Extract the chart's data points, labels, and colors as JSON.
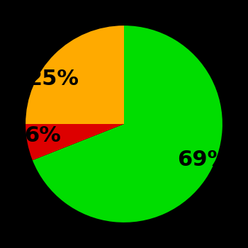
{
  "slices": [
    69,
    6,
    25
  ],
  "labels": [
    "69%",
    "6%",
    "25%"
  ],
  "colors": [
    "#00dd00",
    "#dd0000",
    "#ffaa00"
  ],
  "background_color": "#000000",
  "text_color": "#000000",
  "startangle": 90,
  "counterclock": false,
  "label_fontsize": 22,
  "label_fontweight": "bold",
  "labeldistance": 0.65
}
